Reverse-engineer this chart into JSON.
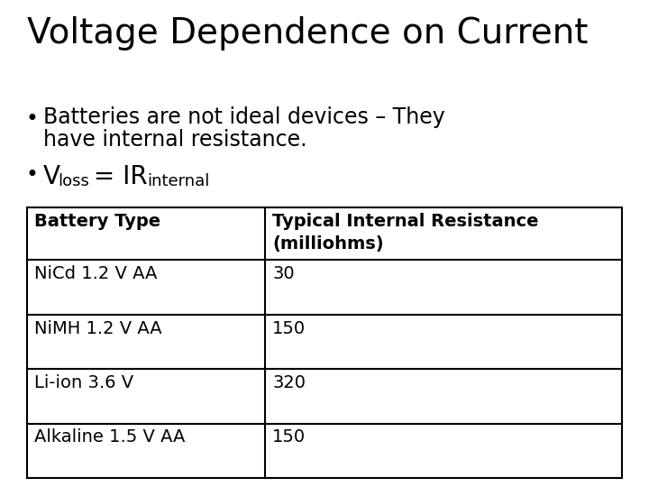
{
  "title": "Voltage Dependence on Current",
  "bullet1_line1": "Batteries are not ideal devices – They",
  "bullet1_line2": "have internal resistance.",
  "table_headers": [
    "Battery Type",
    "Typical Internal Resistance\n(milliohms)"
  ],
  "table_rows": [
    [
      "NiCd 1.2 V AA",
      "30"
    ],
    [
      "NiMH 1.2 V AA",
      "150"
    ],
    [
      "Li-ion 3.6 V",
      "320"
    ],
    [
      "Alkaline 1.5 V AA",
      "150"
    ]
  ],
  "bg_color": "#ffffff",
  "text_color": "#000000",
  "title_fontsize": 28,
  "bullet_fontsize": 17,
  "bullet_symbol_fontsize": 17,
  "formula_fontsize": 20,
  "formula_sub_fontsize": 13,
  "table_header_fontsize": 14,
  "table_body_fontsize": 14,
  "col_split": 0.4
}
